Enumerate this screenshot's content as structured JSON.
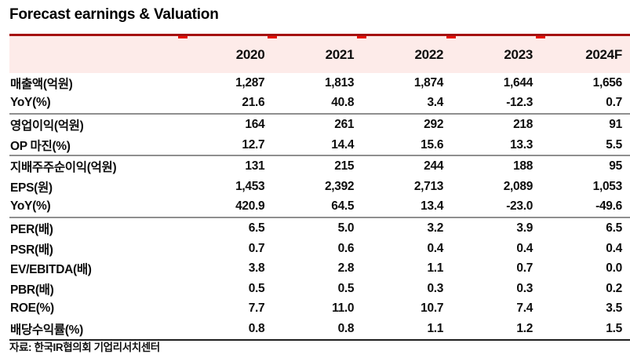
{
  "title": "Forecast earnings & Valuation",
  "table": {
    "columns": [
      "2020",
      "2021",
      "2022",
      "2023",
      "2024F"
    ],
    "rows": [
      {
        "label": "매출액(억원)",
        "values": [
          "1,287",
          "1,813",
          "1,874",
          "1,644",
          "1,656"
        ],
        "section_end": false
      },
      {
        "label": "YoY(%)",
        "values": [
          "21.6",
          "40.8",
          "3.4",
          "-12.3",
          "0.7"
        ],
        "section_end": true
      },
      {
        "label": "영업이익(억원)",
        "values": [
          "164",
          "261",
          "292",
          "218",
          "91"
        ],
        "section_end": false
      },
      {
        "label": "OP 마진(%)",
        "values": [
          "12.7",
          "14.4",
          "15.6",
          "13.3",
          "5.5"
        ],
        "section_end": true
      },
      {
        "label": "지배주주순이익(억원)",
        "values": [
          "131",
          "215",
          "244",
          "188",
          "95"
        ],
        "section_end": false
      },
      {
        "label": "EPS(원)",
        "values": [
          "1,453",
          "2,392",
          "2,713",
          "2,089",
          "1,053"
        ],
        "section_end": false
      },
      {
        "label": "YoY(%)",
        "values": [
          "420.9",
          "64.5",
          "13.4",
          "-23.0",
          "-49.6"
        ],
        "section_end": true
      },
      {
        "label": "PER(배)",
        "values": [
          "6.5",
          "5.0",
          "3.2",
          "3.9",
          "6.5"
        ],
        "section_end": false
      },
      {
        "label": "PSR(배)",
        "values": [
          "0.7",
          "0.6",
          "0.4",
          "0.4",
          "0.4"
        ],
        "section_end": false
      },
      {
        "label": "EV/EBITDA(배)",
        "values": [
          "3.8",
          "2.8",
          "1.1",
          "0.7",
          "0.0"
        ],
        "section_end": false
      },
      {
        "label": "PBR(배)",
        "values": [
          "0.5",
          "0.5",
          "0.3",
          "0.3",
          "0.2"
        ],
        "section_end": false
      },
      {
        "label": "ROE(%)",
        "values": [
          "7.7",
          "11.0",
          "10.7",
          "7.4",
          "3.5"
        ],
        "section_end": false
      },
      {
        "label": "배당수익률(%)",
        "values": [
          "0.8",
          "0.8",
          "1.1",
          "1.2",
          "1.5"
        ],
        "section_end": false
      }
    ]
  },
  "source": "자료: 한국IR협의회 기업리서치센터",
  "colors": {
    "top_rule": "#a5100f",
    "column_tick": "#e51000",
    "header_bg": "#fdebe9",
    "section_rule": "#8f8f8f",
    "bottom_rule": "#1f1f1f"
  }
}
